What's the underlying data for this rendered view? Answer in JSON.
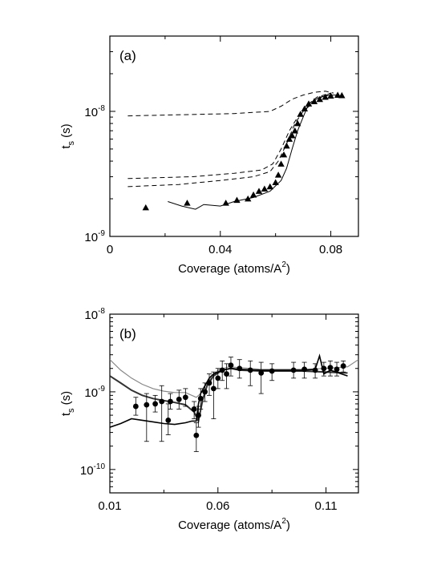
{
  "chart_data": [
    {
      "panel": "(a)",
      "type": "line",
      "title": "",
      "xlabel": "Coverage (atoms/A",
      "xlabel_sup": "2",
      "xlabel_tail": ")",
      "ylabel": "t",
      "ylabel_sub": "s",
      "ylabel_tail": " (s)",
      "y_scale": "log",
      "xlim": [
        0,
        0.09
      ],
      "ylim": [
        1e-09,
        4e-08
      ],
      "x_ticks": [
        {
          "v": 0,
          "label": "0"
        },
        {
          "v": 0.04,
          "label": "0.04"
        },
        {
          "v": 0.08,
          "label": "0.08"
        }
      ],
      "y_ticks": [
        {
          "v": 1e-09,
          "base": "10",
          "exp": "-9"
        },
        {
          "v": 1e-08,
          "base": "10",
          "exp": "-8"
        }
      ],
      "grid": false,
      "series": [
        {
          "style": "dashed",
          "x": [
            0.0065,
            0.045,
            0.058,
            0.062,
            0.066,
            0.07,
            0.074,
            0.078,
            0.081
          ],
          "y": [
            9.2e-09,
            9.6e-09,
            1e-08,
            1.1e-08,
            1.25e-08,
            1.35e-08,
            1.42e-08,
            1.45e-08,
            1.4e-08
          ]
        },
        {
          "style": "dashed",
          "x": [
            0.0065,
            0.03,
            0.045,
            0.055,
            0.059,
            0.062,
            0.065,
            0.068,
            0.071,
            0.075,
            0.08
          ],
          "y": [
            2.9e-09,
            3e-09,
            3.2e-09,
            3.4e-09,
            3.8e-09,
            5e-09,
            7e-09,
            9e-09,
            1.1e-08,
            1.3e-08,
            1.4e-08
          ]
        },
        {
          "style": "dashed",
          "x": [
            0.0065,
            0.025,
            0.04,
            0.052,
            0.058,
            0.061,
            0.064,
            0.067,
            0.07,
            0.075,
            0.08
          ],
          "y": [
            2.5e-09,
            2.6e-09,
            2.8e-09,
            3e-09,
            3.3e-09,
            4e-09,
            5.5e-09,
            8e-09,
            1e-08,
            1.25e-08,
            1.4e-08
          ]
        },
        {
          "style": "solid",
          "x": [
            0.021,
            0.026,
            0.031,
            0.034,
            0.04,
            0.045,
            0.052,
            0.058,
            0.062,
            0.064,
            0.066,
            0.068,
            0.07,
            0.072,
            0.076,
            0.08,
            0.083
          ],
          "y": [
            1.9e-09,
            1.75e-09,
            1.65e-09,
            1.8e-09,
            1.75e-09,
            1.9e-09,
            2.05e-09,
            2.3e-09,
            2.8e-09,
            3.5e-09,
            5e-09,
            7e-09,
            9e-09,
            1.15e-08,
            1.3e-08,
            1.35e-08,
            1.35e-08
          ]
        },
        {
          "style": "triangles",
          "x": [
            0.013,
            0.028,
            0.042,
            0.046,
            0.05,
            0.052,
            0.054,
            0.056,
            0.058,
            0.06,
            0.061,
            0.062,
            0.063,
            0.064,
            0.065,
            0.066,
            0.067,
            0.068,
            0.069,
            0.0705,
            0.072,
            0.074,
            0.076,
            0.078,
            0.08,
            0.0825,
            0.084
          ],
          "y": [
            1.7e-09,
            1.85e-09,
            1.85e-09,
            1.95e-09,
            2e-09,
            2.15e-09,
            2.3e-09,
            2.4e-09,
            2.5e-09,
            2.7e-09,
            3.1e-09,
            3.8e-09,
            4.5e-09,
            5.3e-09,
            6e-09,
            6.4e-09,
            7e-09,
            8e-09,
            9.5e-09,
            1.05e-08,
            1.15e-08,
            1.2e-08,
            1.25e-08,
            1.3e-08,
            1.33e-08,
            1.35e-08,
            1.34e-08
          ]
        }
      ]
    },
    {
      "panel": "(b)",
      "type": "scatter",
      "title": "",
      "xlabel": "Coverage (atoms/A",
      "xlabel_sup": "2",
      "xlabel_tail": ")",
      "ylabel": "t",
      "ylabel_sub": "s",
      "ylabel_tail": " (s)",
      "y_scale": "log",
      "xlim": [
        0.01,
        0.125
      ],
      "ylim": [
        5e-11,
        1e-08
      ],
      "x_ticks": [
        {
          "v": 0.01,
          "label": "0.01"
        },
        {
          "v": 0.06,
          "label": "0.06"
        },
        {
          "v": 0.11,
          "label": "0.11"
        }
      ],
      "y_ticks": [
        {
          "v": 1e-10,
          "base": "10",
          "exp": "-10"
        },
        {
          "v": 1e-09,
          "base": "10",
          "exp": "-9"
        },
        {
          "v": 1e-08,
          "base": "10",
          "exp": "-8"
        }
      ],
      "grid": false,
      "series": [
        {
          "style": "line",
          "color": "#888888",
          "width": 1.2,
          "x": [
            0.01,
            0.015,
            0.02,
            0.025,
            0.03,
            0.035,
            0.04,
            0.045,
            0.05,
            0.052,
            0.055,
            0.06,
            0.065,
            0.07,
            0.08,
            0.09,
            0.1,
            0.11,
            0.12,
            0.125
          ],
          "y": [
            2.6e-09,
            1.9e-09,
            1.5e-09,
            1.25e-09,
            1.1e-09,
            1.02e-09,
            9.8e-10,
            9.8e-10,
            8.5e-10,
            9.5e-10,
            1.3e-09,
            1.9e-09,
            2.1e-09,
            2.05e-09,
            1.95e-09,
            1.95e-09,
            1.95e-09,
            2e-09,
            2.1e-09,
            2.6e-09
          ]
        },
        {
          "style": "line",
          "color": "#333333",
          "width": 2,
          "x": [
            0.01,
            0.015,
            0.02,
            0.025,
            0.03,
            0.035,
            0.04,
            0.045,
            0.049,
            0.051,
            0.053,
            0.055,
            0.058,
            0.062,
            0.066,
            0.07,
            0.08,
            0.09,
            0.1,
            0.11,
            0.12
          ],
          "y": [
            1.6e-09,
            1.3e-09,
            1.05e-09,
            9e-10,
            8.2e-10,
            7.7e-10,
            7.3e-10,
            6.8e-10,
            5.5e-10,
            4.2e-10,
            8e-10,
            1.2e-09,
            1.6e-09,
            1.9e-09,
            2e-09,
            1.9e-09,
            1.85e-09,
            1.85e-09,
            1.85e-09,
            1.8e-09,
            1.75e-09
          ]
        },
        {
          "style": "line",
          "color": "#000000",
          "width": 1.6,
          "x": [
            0.01,
            0.015,
            0.02,
            0.025,
            0.03,
            0.035,
            0.04,
            0.045,
            0.048,
            0.05,
            0.051,
            0.052,
            0.054,
            0.056,
            0.058,
            0.062,
            0.066,
            0.07,
            0.08,
            0.09,
            0.1,
            0.105,
            0.107,
            0.109,
            0.112,
            0.12
          ],
          "y": [
            3.5e-10,
            3.9e-10,
            4.5e-10,
            4.3e-10,
            4.1e-10,
            3.9e-10,
            3.8e-10,
            4e-10,
            4.2e-10,
            4.2e-10,
            7e-10,
            9.5e-10,
            1.2e-09,
            1.5e-09,
            1.7e-09,
            1.9e-09,
            2e-09,
            1.95e-09,
            1.9e-09,
            1.9e-09,
            1.9e-09,
            1.95e-09,
            2.9e-09,
            1.7e-09,
            1.9e-09,
            1.6e-09
          ]
        },
        {
          "style": "points",
          "points": [
            {
              "x": 0.022,
              "y": 6.5e-10,
              "lo": 5e-10,
              "hi": 8.5e-10
            },
            {
              "x": 0.027,
              "y": 6.8e-10,
              "lo": 2.3e-10,
              "hi": 9.5e-10
            },
            {
              "x": 0.031,
              "y": 7e-10,
              "lo": 5.5e-10,
              "hi": 9e-10
            },
            {
              "x": 0.034,
              "y": 7.5e-10,
              "lo": 2.3e-10,
              "hi": 1.2e-09
            },
            {
              "x": 0.037,
              "y": 4.3e-10,
              "lo": 2.8e-10,
              "hi": 7e-10
            },
            {
              "x": 0.038,
              "y": 7.5e-10,
              "lo": 6e-10,
              "hi": 9.5e-10
            },
            {
              "x": 0.042,
              "y": 8e-10,
              "lo": 6e-10,
              "hi": 1.05e-09
            },
            {
              "x": 0.045,
              "y": 8.5e-10,
              "lo": 6.5e-10,
              "hi": 1.1e-09
            },
            {
              "x": 0.049,
              "y": 6e-10,
              "lo": 4.5e-10,
              "hi": 7.5e-10
            },
            {
              "x": 0.05,
              "y": 2.75e-10,
              "lo": 1.7e-10,
              "hi": 4e-10
            },
            {
              "x": 0.051,
              "y": 5e-10,
              "lo": 3.5e-10,
              "hi": 6.5e-10
            },
            {
              "x": 0.052,
              "y": 8.2e-10,
              "lo": 6e-10,
              "hi": 1.1e-09
            },
            {
              "x": 0.054,
              "y": 1e-09,
              "lo": 7.5e-10,
              "hi": 1.3e-09
            },
            {
              "x": 0.056,
              "y": 1.3e-09,
              "lo": 9e-10,
              "hi": 1.7e-09
            },
            {
              "x": 0.058,
              "y": 1.1e-09,
              "lo": 4.5e-10,
              "hi": 1.8e-09
            },
            {
              "x": 0.06,
              "y": 1.5e-09,
              "lo": 1.1e-09,
              "hi": 2e-09
            },
            {
              "x": 0.062,
              "y": 1.9e-09,
              "lo": 1.4e-09,
              "hi": 2.5e-09
            },
            {
              "x": 0.064,
              "y": 1.7e-09,
              "lo": 1.1e-09,
              "hi": 2.3e-09
            },
            {
              "x": 0.066,
              "y": 2.2e-09,
              "lo": 1.6e-09,
              "hi": 2.8e-09
            },
            {
              "x": 0.07,
              "y": 2e-09,
              "lo": 1.5e-09,
              "hi": 2.6e-09
            },
            {
              "x": 0.075,
              "y": 1.9e-09,
              "lo": 1.2e-09,
              "hi": 2.5e-09
            },
            {
              "x": 0.08,
              "y": 1.75e-09,
              "lo": 9.5e-10,
              "hi": 2.4e-09
            },
            {
              "x": 0.085,
              "y": 1.85e-09,
              "lo": 1.4e-09,
              "hi": 2.3e-09
            },
            {
              "x": 0.095,
              "y": 1.9e-09,
              "lo": 1.5e-09,
              "hi": 2.4e-09
            },
            {
              "x": 0.1,
              "y": 1.95e-09,
              "lo": 1.5e-09,
              "hi": 2.4e-09
            },
            {
              "x": 0.105,
              "y": 1.9e-09,
              "lo": 1.5e-09,
              "hi": 2.3e-09
            },
            {
              "x": 0.109,
              "y": 2e-09,
              "lo": 1.6e-09,
              "hi": 2.4e-09
            },
            {
              "x": 0.112,
              "y": 2.05e-09,
              "lo": 1.6e-09,
              "hi": 2.5e-09
            },
            {
              "x": 0.115,
              "y": 1.95e-09,
              "lo": 1.6e-09,
              "hi": 2.4e-09
            },
            {
              "x": 0.118,
              "y": 2.15e-09,
              "lo": 1.8e-09,
              "hi": 2.5e-09
            }
          ]
        }
      ]
    }
  ]
}
